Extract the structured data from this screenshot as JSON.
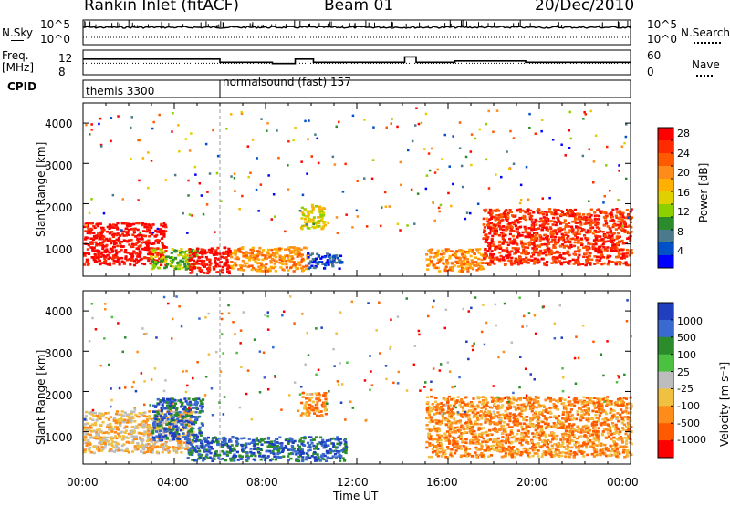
{
  "header": {
    "station": "Rankin Inlet (fitACF)",
    "beam": "Beam 01",
    "date": "20/Dec/2010"
  },
  "strip": {
    "nsky_label": "N.Sky",
    "nsky_ticks": [
      "10^5",
      "10^0"
    ],
    "nsearch_label": "N.Search",
    "nsearch_ticks": [
      "10^5",
      "10^0"
    ],
    "freq_label_1": "Freq.",
    "freq_label_2": "[MHz]",
    "freq_ticks": [
      "12",
      "8"
    ],
    "nave_label": "Nave",
    "nave_ticks": [
      "60",
      "0"
    ],
    "cpid_label": "CPID",
    "cpid_modes": [
      {
        "label": "themis 3300",
        "start_hour": 0
      },
      {
        "label": "normalsound (fast) 157",
        "start_hour": 6
      }
    ]
  },
  "power_panel": {
    "ylabel": "Slant Range [km]",
    "yticks": [
      "4000",
      "3000",
      "2000",
      "1000"
    ],
    "colorbar_label": "Power [dB]",
    "colorbar_ticks": [
      "28",
      "24",
      "20",
      "16",
      "12",
      "8",
      "4"
    ],
    "colors": [
      "#ff0000",
      "#ff2a00",
      "#ff5a00",
      "#ff8c1a",
      "#ffb000",
      "#e0d000",
      "#8cd000",
      "#2a8c2a",
      "#4a7a8c",
      "#0050c8",
      "#0000ff"
    ]
  },
  "velocity_panel": {
    "ylabel": "Slant Range [km]",
    "yticks": [
      "4000",
      "3000",
      "2000",
      "1000"
    ],
    "colorbar_label": "Velocity [m s⁻¹]",
    "colorbar_ticks": [
      "1000",
      "500",
      "100",
      "25",
      "-25",
      "-100",
      "-500",
      "-1000"
    ],
    "colors": [
      "#1f3fbf",
      "#3a6ad0",
      "#2a8c2a",
      "#4cc040",
      "#bdbdbd",
      "#f0c040",
      "#ff8c1a",
      "#ff5a00",
      "#ff0000"
    ]
  },
  "xaxis": {
    "label": "Time UT",
    "ticks": [
      "00:00",
      "04:00",
      "08:00",
      "12:00",
      "16:00",
      "20:00",
      "00:00"
    ]
  },
  "chart_data": [
    {
      "type": "line",
      "title": "N.Sky / N.Search",
      "x_range_hours": [
        0,
        24
      ],
      "series": [
        {
          "name": "N.Sky",
          "x": [
            0,
            2,
            4,
            6,
            8,
            10,
            12,
            14,
            16,
            18,
            20,
            22,
            24
          ],
          "values": [
            3000,
            3200,
            2800,
            3100,
            3500,
            3300,
            3000,
            3200,
            3100,
            3000,
            3400,
            3200,
            3100
          ]
        }
      ]
    },
    {
      "type": "line",
      "title": "Freq / Nave",
      "x_range_hours": [
        0,
        24
      ],
      "series": [
        {
          "name": "Freq. [MHz]",
          "x": [
            0,
            6,
            6,
            8.3,
            8.3,
            9.3,
            9.3,
            10.1,
            10.1,
            14.1,
            14.1,
            14.6,
            14.6,
            16.3,
            16.3,
            19.4,
            19.4,
            24
          ],
          "values": [
            11.0,
            11.0,
            10.3,
            10.3,
            10.0,
            10.0,
            11.0,
            11.0,
            10.3,
            10.3,
            11.5,
            11.5,
            10.3,
            10.3,
            10.6,
            10.6,
            10.3,
            10.3
          ]
        },
        {
          "name": "Nave",
          "x": [
            0,
            24
          ],
          "values": [
            28,
            28
          ]
        }
      ]
    },
    {
      "type": "heatmap",
      "title": "Power [dB]",
      "xlabel": "Time UT",
      "ylabel": "Slant Range [km]",
      "x_range_hours": [
        0,
        24
      ],
      "ylim": [
        200,
        4500
      ],
      "regions": [
        {
          "t0": 0.0,
          "t1": 3.6,
          "r0": 500,
          "r1": 1550,
          "db": 27
        },
        {
          "t0": 2.9,
          "t1": 5.0,
          "r0": 400,
          "r1": 900,
          "db": 14
        },
        {
          "t0": 4.6,
          "t1": 6.4,
          "r0": 300,
          "r1": 950,
          "db": 28
        },
        {
          "t0": 6.4,
          "t1": 9.8,
          "r0": 350,
          "r1": 950,
          "db": 20
        },
        {
          "t0": 9.8,
          "t1": 11.3,
          "r0": 400,
          "r1": 800,
          "db": 7
        },
        {
          "t0": 15.0,
          "t1": 17.5,
          "r0": 350,
          "r1": 900,
          "db": 22
        },
        {
          "t0": 17.5,
          "t1": 24.0,
          "r0": 500,
          "r1": 1900,
          "db": 25
        },
        {
          "t0": 9.5,
          "t1": 10.6,
          "r0": 1400,
          "r1": 2000,
          "db": 15
        }
      ]
    },
    {
      "type": "heatmap",
      "title": "Velocity [m s⁻¹]",
      "xlabel": "Time UT",
      "ylabel": "Slant Range [km]",
      "x_range_hours": [
        0,
        24
      ],
      "ylim": [
        200,
        4500
      ],
      "regions": [
        {
          "t0": 0.0,
          "t1": 4.8,
          "r0": 500,
          "r1": 1550,
          "v": -60
        },
        {
          "t0": 3.0,
          "t1": 5.2,
          "r0": 800,
          "r1": 1850,
          "v": 300
        },
        {
          "t0": 4.5,
          "t1": 11.5,
          "r0": 300,
          "r1": 900,
          "v": 300
        },
        {
          "t0": 9.5,
          "t1": 10.6,
          "r0": 1400,
          "r1": 2000,
          "v": -150
        },
        {
          "t0": 15.0,
          "t1": 24.0,
          "r0": 400,
          "r1": 1900,
          "v": -200
        }
      ]
    }
  ]
}
